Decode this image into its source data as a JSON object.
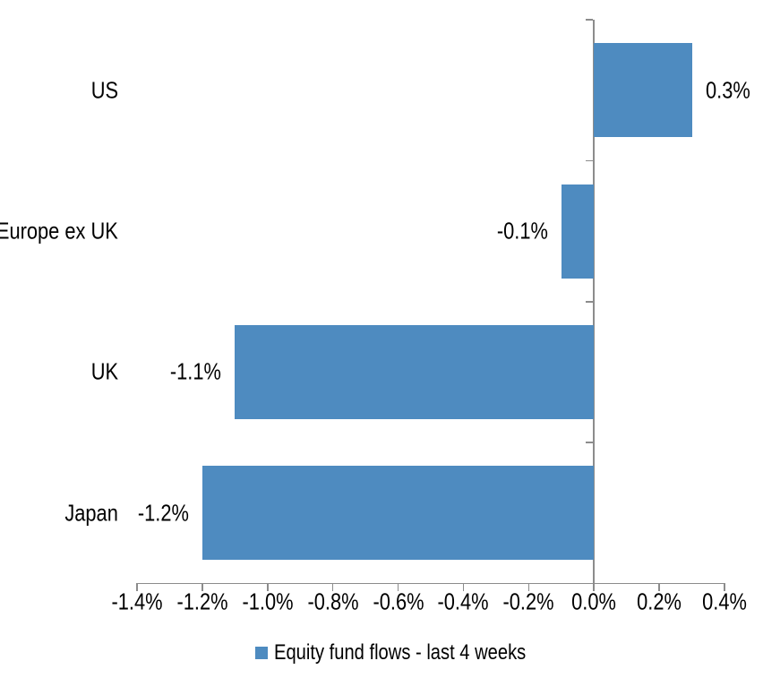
{
  "chart_data": {
    "type": "bar",
    "orientation": "horizontal",
    "title": "",
    "categories": [
      "US",
      "Europe ex UK",
      "UK",
      "Japan"
    ],
    "values": [
      0.3,
      -0.1,
      -1.1,
      -1.2
    ],
    "value_labels": [
      "0.3%",
      "-0.1%",
      "-1.1%",
      "-1.2%"
    ],
    "xlim": [
      -1.4,
      0.4
    ],
    "x_ticks": [
      -1.4,
      -1.2,
      -1.0,
      -0.8,
      -0.6,
      -0.4,
      -0.2,
      0.0,
      0.2,
      0.4
    ],
    "x_tick_labels": [
      "-1.4%",
      "-1.2%",
      "-1.0%",
      "-0.8%",
      "-0.6%",
      "-0.4%",
      "-0.2%",
      "0.0%",
      "0.2%",
      "0.4%"
    ],
    "xlabel": "",
    "ylabel": "",
    "grid": false,
    "legend_position": "bottom",
    "legend_label": "Equity fund flows - last 4 weeks",
    "colors": {
      "bar": "#4E8BC0",
      "axis": "#8C8C8C",
      "text": "#000000",
      "background": "#FFFFFF"
    }
  }
}
